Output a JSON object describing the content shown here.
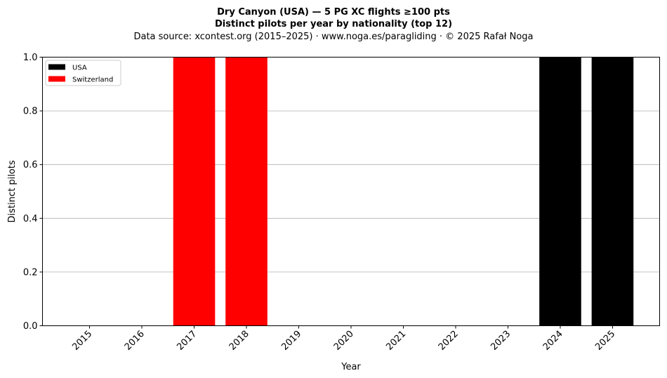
{
  "chart_data": {
    "type": "bar",
    "stacked": true,
    "title_line1": "Dry Canyon (USA)  —  5 PG XC flights ≥100 pts",
    "title_line2": "Distinct pilots per year by nationality (top 12)",
    "subtitle": "Data source: xcontest.org (2015–2025)  ·  www.noga.es/paragliding  ·  © 2025 Rafał Noga",
    "xlabel": "Year",
    "ylabel": "Distinct pilots",
    "ylim": [
      0,
      1.0
    ],
    "yticks": [
      0.0,
      0.2,
      0.4,
      0.6,
      0.8,
      1.0
    ],
    "ytick_labels": [
      "0.0",
      "0.2",
      "0.4",
      "0.6",
      "0.8",
      "1.0"
    ],
    "categories": [
      "2015",
      "2016",
      "2017",
      "2018",
      "2019",
      "2020",
      "2021",
      "2022",
      "2023",
      "2024",
      "2025"
    ],
    "series": [
      {
        "name": "USA",
        "color": "#000000",
        "values": [
          0,
          0,
          0,
          0,
          0,
          0,
          0,
          0,
          0,
          1,
          1
        ]
      },
      {
        "name": "Switzerland",
        "color": "#ff0000",
        "values": [
          0,
          0,
          1,
          1,
          0,
          0,
          0,
          0,
          0,
          0,
          0
        ]
      }
    ],
    "grid": "horizontal",
    "legend_position": "top-left"
  }
}
